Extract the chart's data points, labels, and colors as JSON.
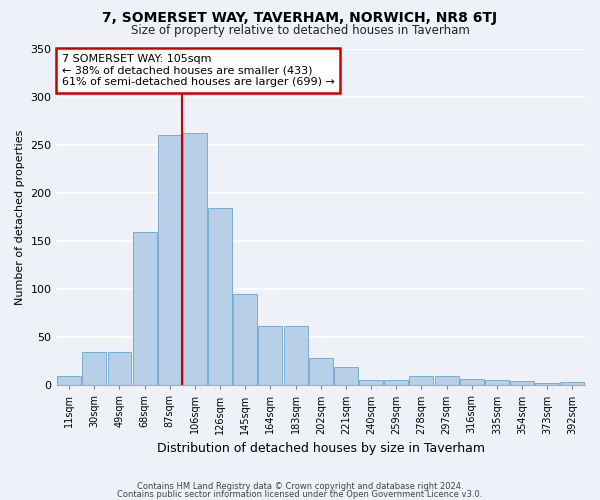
{
  "title1": "7, SOMERSET WAY, TAVERHAM, NORWICH, NR8 6TJ",
  "title2": "Size of property relative to detached houses in Taverham",
  "xlabel": "Distribution of detached houses by size in Taverham",
  "ylabel": "Number of detached properties",
  "categories": [
    "11sqm",
    "30sqm",
    "49sqm",
    "68sqm",
    "87sqm",
    "106sqm",
    "126sqm",
    "145sqm",
    "164sqm",
    "183sqm",
    "202sqm",
    "221sqm",
    "240sqm",
    "259sqm",
    "278sqm",
    "297sqm",
    "316sqm",
    "335sqm",
    "354sqm",
    "373sqm",
    "392sqm"
  ],
  "values": [
    10,
    35,
    35,
    160,
    260,
    263,
    185,
    95,
    62,
    62,
    28,
    19,
    5,
    5,
    10,
    10,
    7,
    5,
    4,
    2,
    3
  ],
  "bar_color": "#b8cfe8",
  "bar_edge_color": "#7aadd4",
  "annotation_text": "7 SOMERSET WAY: 105sqm\n← 38% of detached houses are smaller (433)\n61% of semi-detached houses are larger (699) →",
  "annotation_box_color": "white",
  "annotation_box_edge_color": "#cc0000",
  "line_color": "#cc0000",
  "ylim": [
    0,
    350
  ],
  "yticks": [
    0,
    50,
    100,
    150,
    200,
    250,
    300,
    350
  ],
  "footer1": "Contains HM Land Registry data © Crown copyright and database right 2024.",
  "footer2": "Contains public sector information licensed under the Open Government Licence v3.0.",
  "background_color": "#eef2f8",
  "grid_color": "#ffffff"
}
